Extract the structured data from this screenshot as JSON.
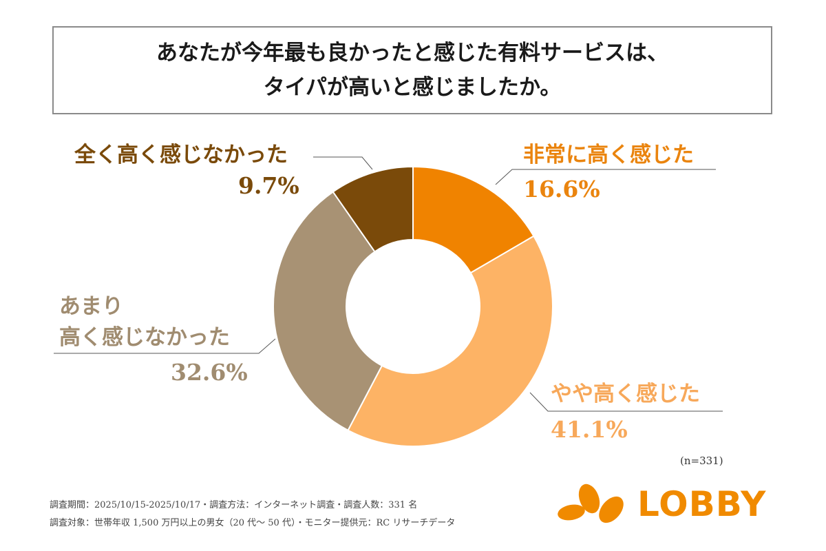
{
  "title": {
    "line1": "あなたが今年最も良かったと感じた有料サービスは、",
    "line2": "タイパが高いと感じましたか。"
  },
  "chart_data": {
    "type": "pie",
    "donut": true,
    "title": "あなたが今年最も良かったと感じた有料サービスは、タイパが高いと感じましたか。",
    "slices": [
      {
        "label": "非常に高く感じた",
        "value": 16.6,
        "display": "16.6%",
        "color": "#f08300"
      },
      {
        "label": "やや高く感じた",
        "value": 41.1,
        "display": "41.1%",
        "color": "#fdb365"
      },
      {
        "label_lines": [
          "あまり",
          "高く感じなかった"
        ],
        "label": "あまり高く感じなかった",
        "value": 32.6,
        "display": "32.6%",
        "color": "#a89274"
      },
      {
        "label": "全く高く感じなかった",
        "value": 9.7,
        "display": "9.7%",
        "color": "#7a4a0a"
      }
    ],
    "label_colors": [
      "#ea840e",
      "#f7a85a",
      "#a08c70",
      "#7a4a0a"
    ],
    "sample": "(n=331)"
  },
  "footer": {
    "line1": "調査期間：2025/10/15-2025/10/17・調査方法：インターネット調査・調査人数：331 名",
    "line2": "調査対象：世帯年収 1,500 万円以上の男女（20 代〜 50 代）・モニター提供元：RC リサーチデータ"
  },
  "logo": {
    "text": "LOBBY",
    "color": "#f08a00"
  }
}
